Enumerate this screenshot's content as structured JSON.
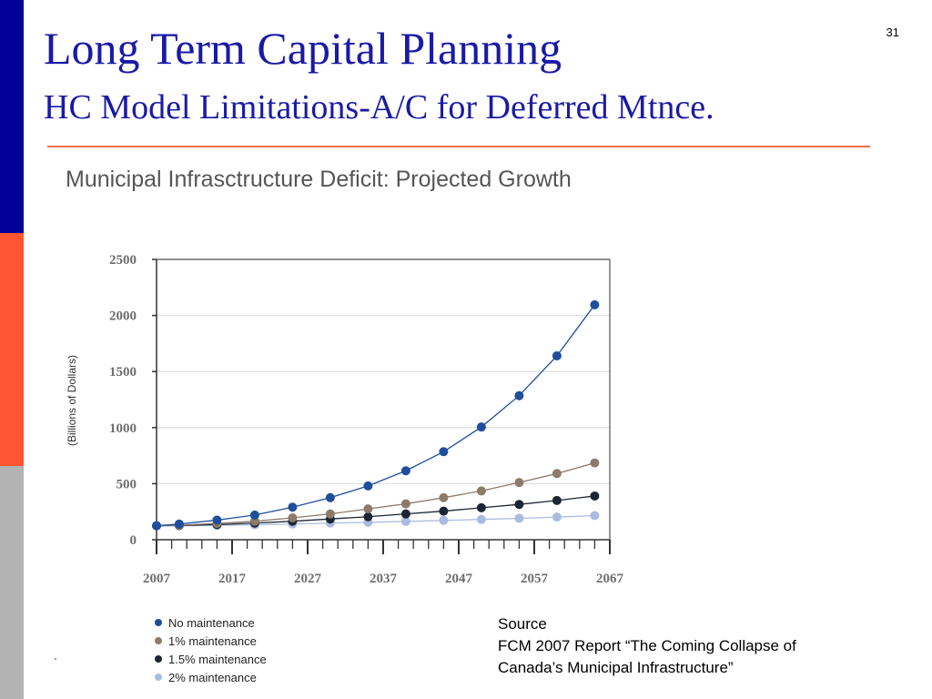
{
  "slide": {
    "page_number": "31",
    "title": "Long Term Capital Planning",
    "subtitle": "HC Model Limitations-A/C for Deferred Mtnce.",
    "colors": {
      "title": "#1a1aa6",
      "rule": "#f26e4f",
      "bar_top": "#000099",
      "bar_mid": "#ff5533",
      "bar_bottom": "#b3b3b3"
    }
  },
  "chart_heading": "Municipal Infrasctructure Deficit: Projected Growth",
  "chart_data": {
    "type": "line",
    "title": "Municipal Infrasctructure Deficit: Projected Growth",
    "xlabel": "",
    "ylabel": "(Billions of Dollars)",
    "xlim": [
      2007,
      2067
    ],
    "ylim": [
      0,
      2500
    ],
    "x_ticks": [
      2007,
      2017,
      2027,
      2037,
      2047,
      2057,
      2067
    ],
    "y_ticks": [
      0,
      500,
      1000,
      1500,
      2000,
      2500
    ],
    "grid": true,
    "legend_position": "below",
    "x": [
      2007,
      2010,
      2015,
      2020,
      2025,
      2030,
      2035,
      2040,
      2045,
      2050,
      2055,
      2060,
      2065
    ],
    "series": [
      {
        "name": "No maintenance",
        "color": "#1f4e9c",
        "values": [
          125,
          140,
          175,
          220,
          290,
          375,
          480,
          615,
          785,
          1005,
          1285,
          1640,
          2095
        ]
      },
      {
        "name": "1%  maintenance",
        "color": "#8c7b6b",
        "values": [
          125,
          130,
          145,
          165,
          195,
          230,
          275,
          320,
          375,
          435,
          510,
          590,
          685
        ]
      },
      {
        "name": "1.5% maintenance",
        "color": "#1c2533",
        "values": [
          125,
          127,
          135,
          148,
          165,
          185,
          205,
          230,
          255,
          285,
          315,
          350,
          390
        ]
      },
      {
        "name": "2% maintenance",
        "color": "#a9bce0",
        "values": [
          125,
          125,
          128,
          133,
          140,
          148,
          155,
          163,
          172,
          181,
          191,
          202,
          215
        ]
      }
    ]
  },
  "legend": {
    "items": [
      {
        "label": "No maintenance",
        "color": "#1f4e9c"
      },
      {
        "label": "1%  maintenance",
        "color": "#8c7b6b"
      },
      {
        "label": "1.5% maintenance",
        "color": "#1c2533"
      },
      {
        "label": "2% maintenance",
        "color": "#a9bce0"
      }
    ]
  },
  "source": {
    "heading": "Source",
    "line1": "FCM 2007 Report “The Coming Collapse of",
    "line2": "Canada’s Municipal Infrastructure”"
  }
}
